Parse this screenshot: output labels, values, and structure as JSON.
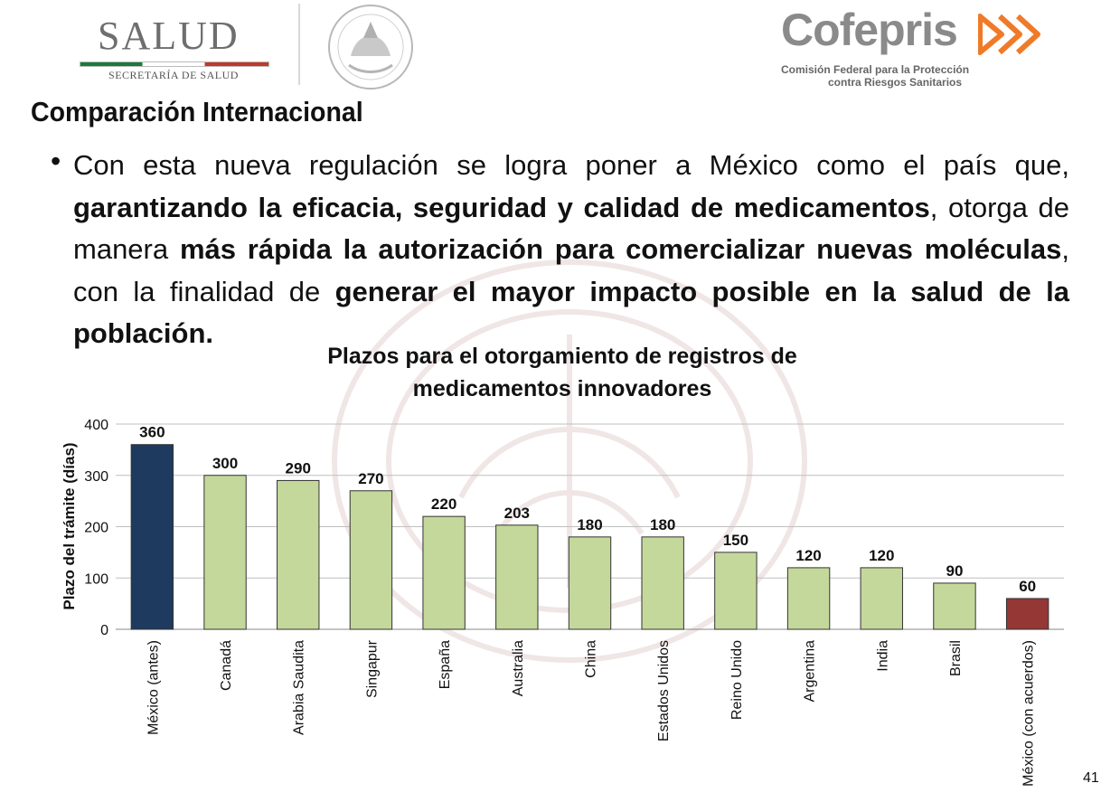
{
  "header": {
    "salud_title": "SALUD",
    "salud_subtitle": "SECRETARÍA DE SALUD",
    "cofepris_name": "Cofepris",
    "cofepris_sub1": "Comisión Federal para la Protección",
    "cofepris_sub2": "contra Riesgos Sanitarios"
  },
  "slide": {
    "title": "Comparación Internacional",
    "bullet_symbol": "•",
    "bullet": {
      "t1": "Con esta nueva regulación se logra poner a México como el país que, ",
      "b1": "garantizando la eficacia, seguridad y calidad de medicamentos",
      "t2": ", otorga de manera ",
      "b2": "más rápida la autorización para comercializar nuevas moléculas",
      "t3": ", con la finalidad de ",
      "b3": "generar el mayor impacto posible en la salud de la población."
    },
    "page_number": "41"
  },
  "colors": {
    "first_bar": "#1f3a5f",
    "default_bar": "#c4d89b",
    "last_bar": "#953735",
    "gridline": "#bfbfbf"
  },
  "chart_data": {
    "type": "bar",
    "title_line1": "Plazos para el otorgamiento de registros de",
    "title_line2": "medicamentos innovadores",
    "ylabel": "Plazo del trámite (días)",
    "xlabel": "",
    "ylim": [
      0,
      400
    ],
    "yticks": [
      0,
      100,
      200,
      300,
      400
    ],
    "grid": true,
    "categories": [
      "México (antes)",
      "Canadá",
      "Arabia Saudita",
      "Singapur",
      "España",
      "Australia",
      "China",
      "Estados Unidos",
      "Reino Unido",
      "Argentina",
      "India",
      "Brasil",
      "México (con acuerdos)"
    ],
    "values": [
      360,
      300,
      290,
      270,
      220,
      203,
      180,
      180,
      150,
      120,
      120,
      90,
      60
    ]
  }
}
